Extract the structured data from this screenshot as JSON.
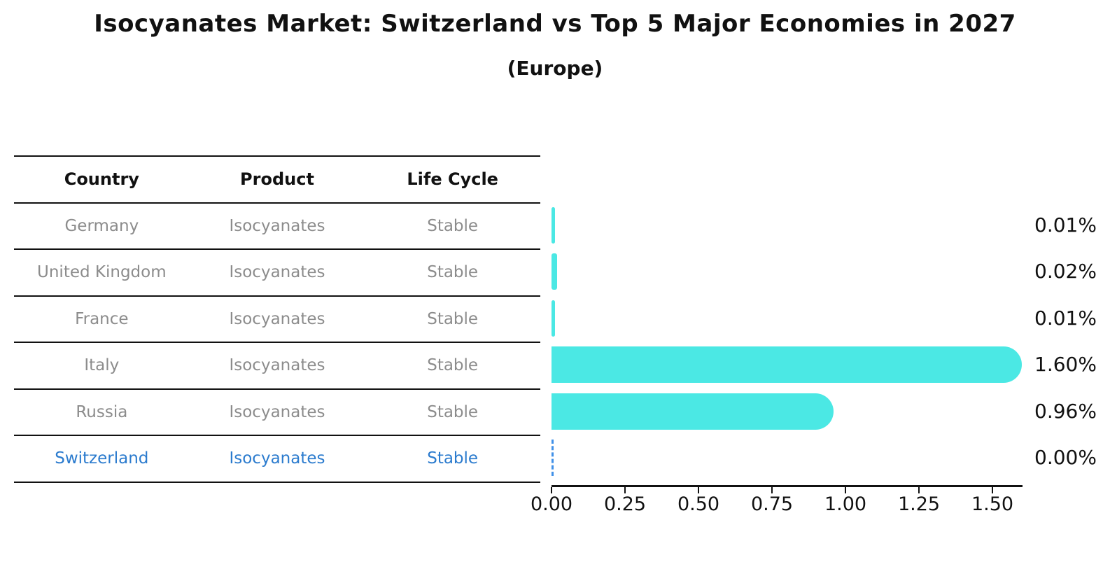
{
  "title": "Isocyanates Market: Switzerland vs Top 5 Major Economies in 2027",
  "subtitle": "(Europe)",
  "table": {
    "headers": [
      "Country",
      "Product",
      "Life Cycle"
    ],
    "rows": [
      {
        "country": "Germany",
        "product": "Isocyanates",
        "life_cycle": "Stable",
        "value_label": "0.01%"
      },
      {
        "country": "United Kingdom",
        "product": "Isocyanates",
        "life_cycle": "Stable",
        "value_label": "0.02%"
      },
      {
        "country": "France",
        "product": "Isocyanates",
        "life_cycle": "Stable",
        "value_label": "0.01%"
      },
      {
        "country": "Italy",
        "product": "Isocyanates",
        "life_cycle": "Stable",
        "value_label": "1.60%"
      },
      {
        "country": "Russia",
        "product": "Isocyanates",
        "life_cycle": "Stable",
        "value_label": "0.96%"
      },
      {
        "country": "Switzerland",
        "product": "Isocyanates",
        "life_cycle": "Stable",
        "value_label": "0.00%"
      }
    ]
  },
  "chart_data": {
    "type": "bar",
    "orientation": "horizontal",
    "title": "Isocyanates Market: Switzerland vs Top 5 Major Economies in 2027",
    "subtitle": "(Europe)",
    "categories": [
      "Germany",
      "United Kingdom",
      "France",
      "Italy",
      "Russia",
      "Switzerland"
    ],
    "values": [
      0.01,
      0.02,
      0.01,
      1.6,
      0.96,
      0.0
    ],
    "value_labels": [
      "0.01%",
      "0.02%",
      "0.01%",
      "1.60%",
      "0.96%",
      "0.00%"
    ],
    "xlabel": "",
    "ylabel": "",
    "xlim": [
      0.0,
      1.65
    ],
    "x_ticks": [
      "0.00",
      "0.25",
      "0.50",
      "0.75",
      "1.00",
      "1.25",
      "1.50"
    ],
    "grid": false,
    "legend": false,
    "highlighted_category": "Switzerland"
  },
  "axis": {
    "ticks": [
      "0.00",
      "0.25",
      "0.50",
      "0.75",
      "1.00",
      "1.25",
      "1.50"
    ]
  },
  "colors": {
    "bar": "#4be8e4",
    "highlight_text": "#2b7bce",
    "highlight_bar_dash": "#4191e8",
    "table_text": "#8c8c8c",
    "ink": "#111111"
  }
}
